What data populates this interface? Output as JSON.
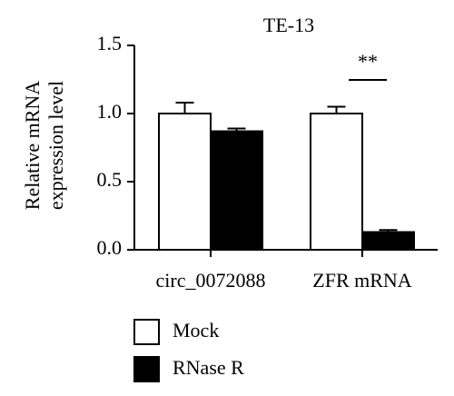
{
  "chart_data": {
    "type": "bar",
    "title": "TE-13",
    "y_label": [
      "Relative mRNA",
      "expression level"
    ],
    "categories": [
      "circ_0072088",
      "ZFR mRNA"
    ],
    "series": [
      {
        "name": "Mock",
        "color": "#ffffff",
        "values": [
          1.0,
          1.0
        ],
        "errors": [
          0.08,
          0.05
        ]
      },
      {
        "name": "RNase R",
        "color": "#000000",
        "values": [
          0.87,
          0.13
        ],
        "errors": [
          0.02,
          0.015
        ]
      }
    ],
    "annotation": "**",
    "ylim": [
      0,
      1.5
    ],
    "yticks": [
      {
        "value": 0,
        "label": "0.0"
      },
      0.5,
      {
        "value": 1,
        "label": "1.0"
      },
      1.5
    ],
    "grid": false
  }
}
